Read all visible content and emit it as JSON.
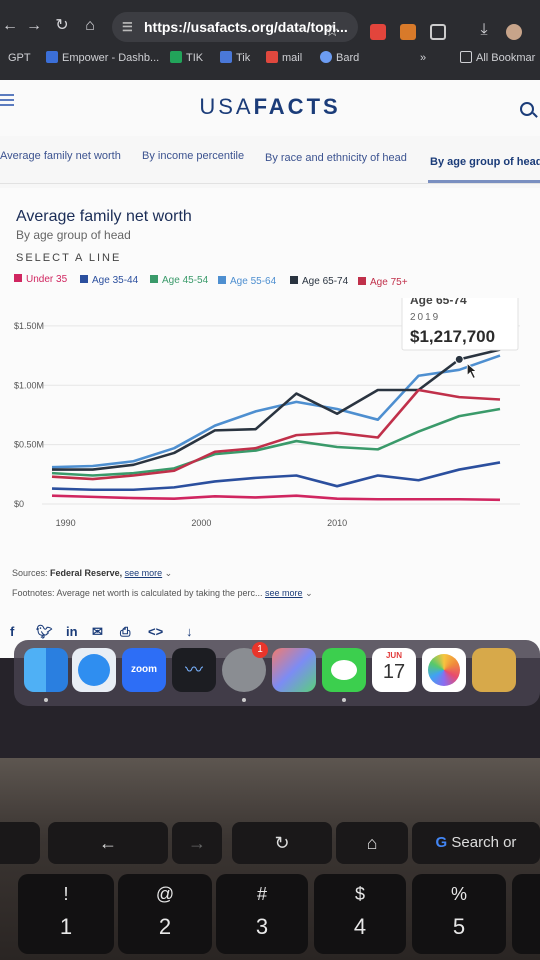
{
  "browser": {
    "url": "https://usafacts.org/data/topi...",
    "bookmarks": [
      "GPT",
      "Empower - Dashb...",
      "TIK",
      "Tik",
      "mail",
      "Bard",
      "All Bookmar"
    ]
  },
  "site": {
    "logo_usa": "USA",
    "logo_facts": "FACTS"
  },
  "tabs": [
    {
      "label": "Average family net worth"
    },
    {
      "label": "By income percentile"
    },
    {
      "label": "By race and ethnicity of head"
    },
    {
      "label": "By age group of head"
    }
  ],
  "chart_header": {
    "title": "Average family net worth",
    "subtitle": "By age group of head",
    "select_line": "SELECT A LINE"
  },
  "chart_data": {
    "type": "line",
    "title": "Average family net worth",
    "subtitle": "By age group of head",
    "x": [
      1989,
      1992,
      1995,
      1998,
      2001,
      2004,
      2007,
      2010,
      2013,
      2016,
      2019,
      2022
    ],
    "ylim": [
      0,
      1600000
    ],
    "yticks": [
      {
        "value": 0,
        "label": "$0"
      },
      {
        "value": 500000,
        "label": "$0.50M"
      },
      {
        "value": 1000000,
        "label": "$1.00M"
      },
      {
        "value": 1500000,
        "label": "$1.50M"
      }
    ],
    "xticks": [
      {
        "value": 1990,
        "label": "1990"
      },
      {
        "value": 2000,
        "label": "2000"
      },
      {
        "value": 2010,
        "label": "2010"
      }
    ],
    "series": [
      {
        "name": "Under 35",
        "color": "#d02660",
        "values": [
          70000,
          60000,
          50000,
          45000,
          65000,
          55000,
          70000,
          45000,
          40000,
          40000,
          40000,
          35000
        ]
      },
      {
        "name": "Age 35-44",
        "color": "#2b4f9e",
        "values": [
          130000,
          120000,
          120000,
          140000,
          190000,
          220000,
          240000,
          150000,
          240000,
          200000,
          290000,
          350000
        ]
      },
      {
        "name": "Age 45-54",
        "color": "#3a9a6a",
        "values": [
          260000,
          240000,
          260000,
          300000,
          420000,
          450000,
          530000,
          480000,
          460000,
          610000,
          740000,
          800000
        ]
      },
      {
        "name": "Age 55-64",
        "color": "#4e8fd0",
        "values": [
          310000,
          320000,
          360000,
          470000,
          660000,
          780000,
          860000,
          800000,
          710000,
          1080000,
          1130000,
          1250000
        ]
      },
      {
        "name": "Age 65-74",
        "color": "#2a3440",
        "values": [
          290000,
          290000,
          330000,
          430000,
          620000,
          630000,
          930000,
          760000,
          960000,
          960000,
          1217700,
          1300000
        ]
      },
      {
        "name": "Age 75+",
        "color": "#c0304a",
        "values": [
          230000,
          210000,
          240000,
          280000,
          440000,
          470000,
          580000,
          600000,
          560000,
          960000,
          900000,
          880000
        ]
      }
    ],
    "tooltip": {
      "label": "Age 65-74",
      "year": "2019",
      "value": "$1,217,700"
    }
  },
  "footer": {
    "sources_label": "Sources:",
    "sources_value": "Federal Reserve,",
    "see_more": "see more",
    "footnotes_label": "Footnotes:",
    "footnotes_text": "Average net worth is calculated by taking the perc..."
  },
  "dock": {
    "zoom_label": "zoom",
    "calendar_month": "JUN",
    "calendar_day": "17",
    "badge": "1"
  },
  "keyboard": {
    "touchbar_search": "Search or",
    "keys": [
      {
        "top": "!",
        "bottom": "1"
      },
      {
        "top": "@",
        "bottom": "2"
      },
      {
        "top": "#",
        "bottom": "3"
      },
      {
        "top": "$",
        "bottom": "4"
      },
      {
        "top": "%",
        "bottom": "5"
      }
    ]
  }
}
